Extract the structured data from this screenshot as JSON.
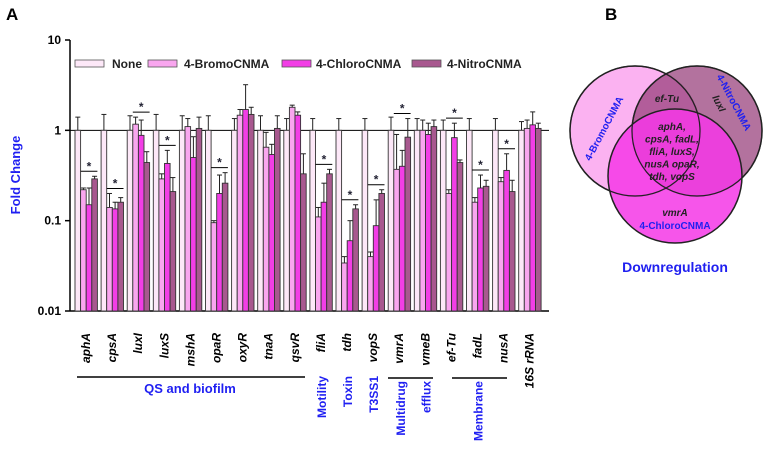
{
  "panel_labels": {
    "a": "A",
    "b": "B"
  },
  "chart_data": {
    "type": "bar",
    "title": "",
    "ylabel": "Fold Change",
    "xlabel": "",
    "yscale": "log",
    "ylim": [
      0.01,
      10
    ],
    "yticks": [
      10,
      1,
      0.1,
      0.01
    ],
    "ytick_labels": [
      "10",
      "1",
      "0.1",
      "0.01"
    ],
    "reference_line": 1,
    "legend_position": "top",
    "categories": [
      "aphA",
      "cpsA",
      "luxI",
      "luxS",
      "mshA",
      "opaR",
      "oxyR",
      "tnaA",
      "qsvR",
      "fliA",
      "tdh",
      "vopS",
      "vmrA",
      "vmeB",
      "ef-Tu",
      "fadL",
      "nusA",
      "16S rRNA"
    ],
    "series": [
      {
        "name": "None",
        "color": "#fde8f8",
        "values": [
          1,
          1,
          1,
          1,
          1,
          1,
          1,
          1,
          1,
          1,
          1,
          1,
          1,
          1,
          1,
          1,
          1,
          1
        ],
        "err_upper": [
          1.4,
          1.5,
          1.45,
          1.5,
          1.45,
          1.45,
          1.35,
          1.45,
          1.35,
          1.35,
          1.35,
          1.35,
          1.4,
          1.35,
          1.3,
          1.35,
          1.35,
          1.25
        ]
      },
      {
        "name": "4-BromoCNMA",
        "color": "#f9a6ef",
        "values": [
          0.22,
          0.14,
          1.17,
          0.29,
          1.1,
          0.095,
          1.47,
          0.65,
          1.8,
          0.11,
          0.034,
          0.04,
          0.37,
          1.0,
          0.2,
          0.16,
          0.27,
          1.05
        ],
        "err_upper": [
          0.23,
          0.2,
          1.4,
          0.33,
          1.35,
          0.1,
          1.7,
          0.95,
          1.9,
          0.14,
          0.04,
          0.045,
          0.9,
          1.3,
          0.22,
          0.18,
          0.3,
          1.3
        ]
      },
      {
        "name": "4-ChloroCNMA",
        "color": "#f23ee6",
        "values": [
          0.15,
          0.135,
          0.88,
          0.43,
          0.5,
          0.2,
          1.7,
          0.54,
          1.47,
          0.16,
          0.06,
          0.088,
          0.4,
          0.9,
          0.83,
          0.23,
          0.36,
          1.15
        ],
        "err_upper": [
          0.23,
          0.16,
          1.3,
          0.6,
          0.85,
          0.32,
          3.2,
          0.7,
          1.6,
          0.26,
          0.1,
          0.17,
          0.6,
          1.2,
          1.2,
          0.32,
          0.55,
          1.6
        ]
      },
      {
        "name": "4-NitroCNMA",
        "color": "#a8588f",
        "values": [
          0.29,
          0.16,
          0.44,
          0.21,
          1.05,
          0.26,
          1.5,
          1.05,
          0.33,
          0.33,
          0.135,
          0.2,
          0.84,
          1.1,
          0.44,
          0.24,
          0.21,
          1.05
        ],
        "err_upper": [
          0.31,
          0.18,
          0.58,
          0.3,
          1.4,
          0.34,
          1.8,
          1.45,
          0.55,
          0.37,
          0.15,
          0.22,
          1.35,
          1.3,
          0.47,
          0.28,
          0.28,
          1.2
        ]
      }
    ],
    "significance_marks": [
      "aphA",
      "cpsA",
      "luxI",
      "luxS",
      "opaR",
      "fliA",
      "tdh",
      "vopS",
      "vmrA",
      "ef-Tu",
      "fadL",
      "nusA"
    ],
    "significance_symbol": "*",
    "gene_groups": [
      {
        "label": "QS and biofilm",
        "from": 0,
        "to": 8
      },
      {
        "label": "Motility",
        "from": 9,
        "to": 9
      },
      {
        "label": "Toxin",
        "from": 10,
        "to": 10
      },
      {
        "label": "T3SS1",
        "from": 11,
        "to": 11
      },
      {
        "label": "Multidrug",
        "from": 12,
        "to": 13
      },
      {
        "label": "efflux",
        "from": 12,
        "to": 13
      },
      {
        "label": "Membrane",
        "from": 14,
        "to": 16
      }
    ]
  },
  "venn": {
    "title": "Downregulation",
    "sets": [
      "4-BromoCNMA",
      "4-NitroCNMA",
      "4-ChloroCNMA"
    ],
    "bromo_nitro_only": "ef-Tu",
    "nitro_only": "luxI",
    "chloro_only": "vmrA",
    "all_three": [
      "aphA,",
      "cpsA, fadL,",
      "fliA, luxS,",
      "nusA opaR,",
      "tdh, vopS"
    ],
    "colors": {
      "bromo": "#fbb2f1",
      "nitro": "#b66ea3",
      "chloro": "#f546e8",
      "label": "#2020f0"
    }
  },
  "text_color": "#1f1ff2"
}
